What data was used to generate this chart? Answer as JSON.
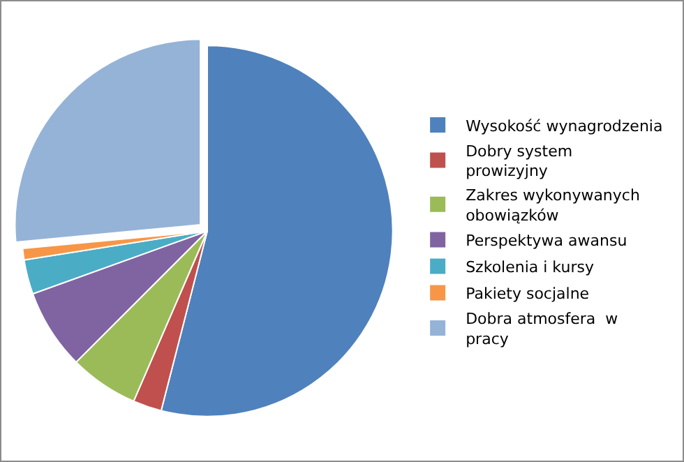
{
  "chart_data": {
    "type": "pie",
    "categories": [
      "Wysokość wynagrodzenia",
      "Dobry system prowizyjny",
      "Zakres wykonywanych obowiązków",
      "Perspektywa awansu",
      "Szkolenia i kursy",
      "Pakiety socjalne",
      "Dobra atmosfera  w pracy"
    ],
    "values": [
      54,
      2.5,
      6,
      7,
      3,
      1,
      26.5
    ],
    "colors": [
      "#4f81bd",
      "#c0504d",
      "#9bbb59",
      "#8064a2",
      "#4bacc6",
      "#f79646",
      "#95b3d7"
    ],
    "legend": "right"
  }
}
